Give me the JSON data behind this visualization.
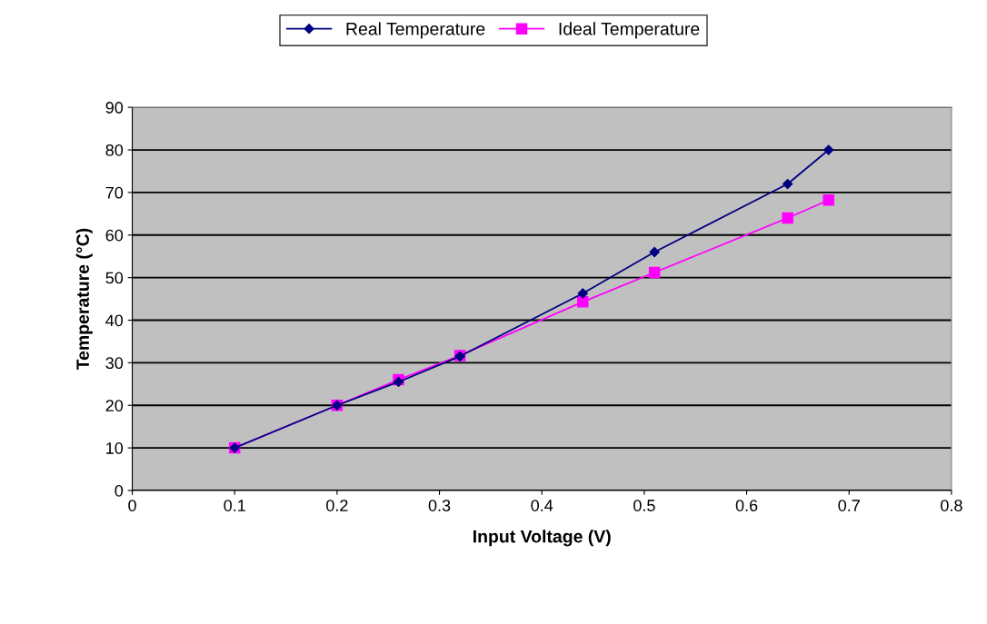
{
  "chart_data": {
    "type": "line",
    "xlabel": "Input Voltage (V)",
    "ylabel": "Temperature (°C)",
    "xlim": [
      0,
      0.8
    ],
    "xticks": [
      0,
      0.1,
      0.2,
      0.3,
      0.4,
      0.5,
      0.6,
      0.7,
      0.8
    ],
    "ylim": [
      0,
      90
    ],
    "yticks": [
      0,
      10,
      20,
      30,
      40,
      50,
      60,
      70,
      80,
      90
    ],
    "grid": "y",
    "legend": "top",
    "series": [
      {
        "name": "Real Temperature",
        "color": "#000080",
        "marker": "diamond",
        "x": [
          0.1,
          0.2,
          0.26,
          0.32,
          0.44,
          0.51,
          0.64,
          0.68
        ],
        "values": [
          10,
          20,
          25.5,
          31.5,
          46.3,
          56,
          72,
          80
        ]
      },
      {
        "name": "Ideal Temperature",
        "color": "#ff00ff",
        "marker": "square",
        "x": [
          0.1,
          0.2,
          0.26,
          0.32,
          0.44,
          0.51,
          0.64,
          0.68
        ],
        "values": [
          10,
          20,
          26,
          31.7,
          44.3,
          51.2,
          64,
          68.2
        ]
      }
    ]
  }
}
